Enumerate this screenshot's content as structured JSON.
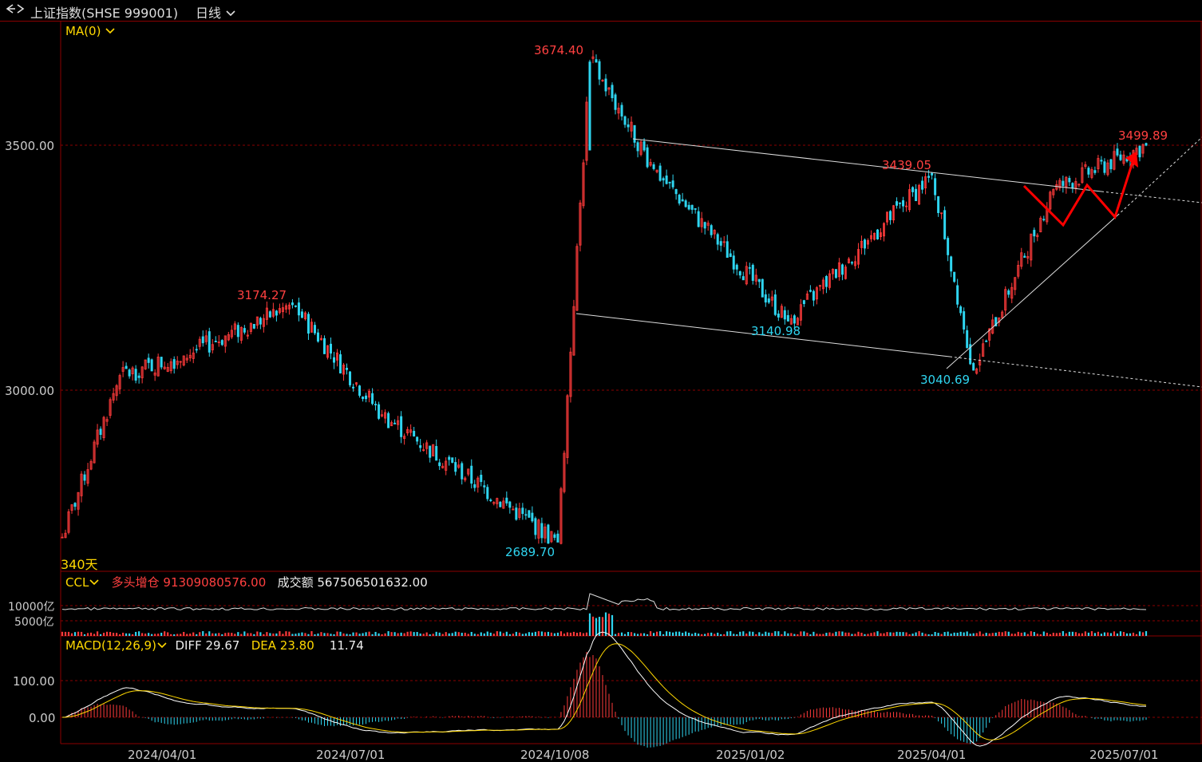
{
  "header": {
    "title": "上证指数(SHSE 999001)",
    "period": "日线",
    "back_icon": "back-forward-icon",
    "dropdown_icon": "chevron-down-icon"
  },
  "main_panel": {
    "ma_label": "MA(0)",
    "days_label": "340天",
    "y_ticks": [
      "3500.00",
      "3000.00"
    ],
    "annotations": {
      "high": "3674.40",
      "mid_high": "3174.27",
      "low": "2689.70",
      "p1": "3439.05",
      "p2": "3140.98",
      "p3": "3040.69",
      "p4": "3499.89"
    }
  },
  "ccl_panel": {
    "name": "CCL",
    "long_label": "多头增仓",
    "long_value": "91309080576.00",
    "turnover_label": "成交额",
    "turnover_value": "567506501632.00",
    "y_ticks": [
      "10000亿",
      "5000亿"
    ]
  },
  "macd_panel": {
    "name": "MACD(12,26,9)",
    "diff_label": "DIFF 29.67",
    "dea_label": "DEA 23.80",
    "macd_value": "11.74",
    "y_ticks": [
      "100.00",
      "0.00"
    ]
  },
  "x_axis": {
    "labels": [
      "2024/04/01",
      "2024/07/01",
      "2024/10/08",
      "2025/01/02",
      "2025/04/01",
      "2025/07/01"
    ]
  },
  "colors": {
    "up": "#ff3b3b",
    "down": "#2fd5f0",
    "grid": "#8b0000",
    "trend": "#dddddd",
    "arrow": "#ff0000"
  },
  "chart_data": {
    "type": "candlestick",
    "title": "上证指数(SHSE 999001)",
    "period": "日线",
    "ylim": [
      2680,
      3700
    ],
    "x_ticks": [
      "2024/04/01",
      "2024/07/01",
      "2024/10/08",
      "2025/01/02",
      "2025/04/01",
      "2025/07/01"
    ],
    "y_ticks": [
      3000,
      3500
    ],
    "num_bars": 340,
    "key_points": [
      {
        "date": "2024/02/05",
        "value": 2700
      },
      {
        "date": "2024/03/01",
        "value": 3030
      },
      {
        "date": "2024/04/01",
        "value": 3070
      },
      {
        "date": "2024/05/20",
        "value": 3174.27
      },
      {
        "date": "2024/07/01",
        "value": 2950
      },
      {
        "date": "2024/09/18",
        "value": 2689.7
      },
      {
        "date": "2024/10/08",
        "value": 3674.4
      },
      {
        "date": "2024/11/08",
        "value": 3452
      },
      {
        "date": "2025/01/13",
        "value": 3140.98
      },
      {
        "date": "2025/03/18",
        "value": 3439.05
      },
      {
        "date": "2025/04/07",
        "value": 3040.69
      },
      {
        "date": "2025/05/14",
        "value": 3410
      },
      {
        "date": "2025/07/11",
        "value": 3499.89
      }
    ],
    "macd": {
      "diff": 29.67,
      "dea": 23.8,
      "macd": 11.74,
      "ylim": [
        -50,
        120
      ]
    },
    "ccl": {
      "long_increase": 91309080576.0,
      "turnover": 567506501632.0
    }
  }
}
